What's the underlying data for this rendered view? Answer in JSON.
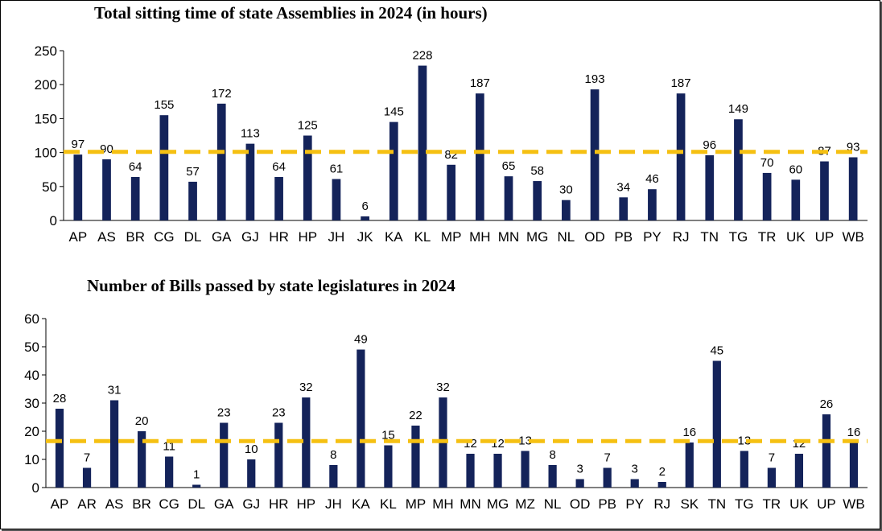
{
  "colors": {
    "bar": "#14235a",
    "avg_line": "#f5c012",
    "axis": "#000000"
  },
  "chart_data": [
    {
      "type": "bar",
      "title": "Total sitting time of state Assemblies in 2024 (in hours)",
      "xlabel": "",
      "ylabel": "",
      "ylim": [
        0,
        250
      ],
      "yticks": [
        0,
        50,
        100,
        150,
        200,
        250
      ],
      "categories": [
        "AP",
        "AS",
        "BR",
        "CG",
        "DL",
        "GA",
        "GJ",
        "HR",
        "HP",
        "JH",
        "JK",
        "KA",
        "KL",
        "MP",
        "MH",
        "MN",
        "MG",
        "NL",
        "OD",
        "PB",
        "PY",
        "RJ",
        "TN",
        "TG",
        "TR",
        "UK",
        "UP",
        "WB"
      ],
      "values": [
        97,
        90,
        64,
        155,
        57,
        172,
        113,
        64,
        125,
        61,
        6,
        145,
        228,
        82,
        187,
        65,
        58,
        30,
        193,
        34,
        46,
        187,
        96,
        149,
        70,
        60,
        87,
        93
      ],
      "reference_line": 101,
      "grid": false,
      "legend": "none"
    },
    {
      "type": "bar",
      "title": "Number of Bills passed by state legislatures in 2024",
      "xlabel": "",
      "ylabel": "",
      "ylim": [
        0,
        60
      ],
      "yticks": [
        0,
        10,
        20,
        30,
        40,
        50,
        60
      ],
      "categories": [
        "AP",
        "AR",
        "AS",
        "BR",
        "CG",
        "DL",
        "GA",
        "GJ",
        "HR",
        "HP",
        "JH",
        "KA",
        "KL",
        "MP",
        "MH",
        "MN",
        "MG",
        "MZ",
        "NL",
        "OD",
        "PB",
        "PY",
        "RJ",
        "SK",
        "TN",
        "TG",
        "TR",
        "UK",
        "UP",
        "WB"
      ],
      "values": [
        28,
        7,
        31,
        20,
        11,
        1,
        23,
        10,
        23,
        32,
        8,
        49,
        15,
        22,
        32,
        12,
        12,
        13,
        8,
        3,
        7,
        3,
        2,
        16,
        45,
        13,
        7,
        12,
        26,
        16
      ],
      "reference_line": 16.5,
      "grid": false,
      "legend": "none"
    }
  ]
}
